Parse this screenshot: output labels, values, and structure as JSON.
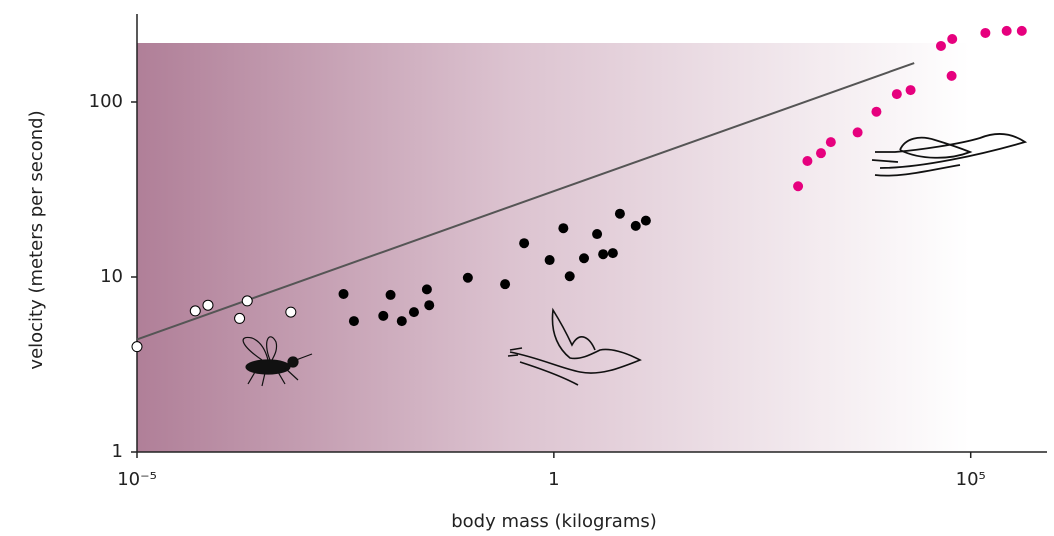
{
  "chart_data": {
    "type": "scatter",
    "x_label": "body mass (kilograms)",
    "y_label": "velocity (meters per second)",
    "xlog": true,
    "ylog": true,
    "xlim": [
      1e-05,
      800000
    ],
    "ylim": [
      1,
      300
    ],
    "xticks": [
      {
        "value": 1e-05,
        "label": "10⁻⁵"
      },
      1,
      {
        "value": 100000,
        "label": "10⁵"
      }
    ],
    "yticks": [
      1,
      10,
      100
    ],
    "series": [
      {
        "marker": "open",
        "color": "#000000",
        "x": [
          1e-05,
          5e-05,
          7.1e-05,
          0.00017,
          0.00021,
          0.0007
        ],
        "values": [
          4.0,
          6.4,
          6.9,
          5.8,
          7.3,
          6.3
        ]
      },
      {
        "marker": "filled",
        "color": "#000000",
        "x": [
          0.003,
          0.004,
          0.009,
          0.011,
          0.015,
          0.021,
          0.03,
          0.032,
          0.093,
          0.26,
          0.44,
          0.89,
          1.3,
          1.55,
          2.3,
          3.3,
          3.9,
          5.1,
          6.2,
          9.6,
          12.7
        ],
        "values": [
          8.0,
          5.6,
          6.0,
          7.9,
          5.6,
          6.3,
          8.5,
          6.9,
          9.9,
          9.1,
          15.6,
          12.5,
          19,
          10.1,
          12.8,
          17.6,
          13.5,
          13.7,
          23,
          19.6,
          21
        ]
      },
      {
        "marker": "filled",
        "color": "#e6007e",
        "x": [
          850,
          1100,
          1600,
          2100,
          4400,
          7400,
          13000,
          19000,
          44000,
          59000,
          60000,
          150000,
          270000,
          410000
        ],
        "values": [
          33,
          46,
          51,
          59,
          67,
          88,
          111,
          117,
          209,
          141,
          229,
          248,
          255,
          255
        ]
      },
      {
        "marker": "line",
        "color": "#555555",
        "x": [
          1e-05,
          21000
        ],
        "values": [
          4.4,
          167
        ]
      }
    ]
  }
}
